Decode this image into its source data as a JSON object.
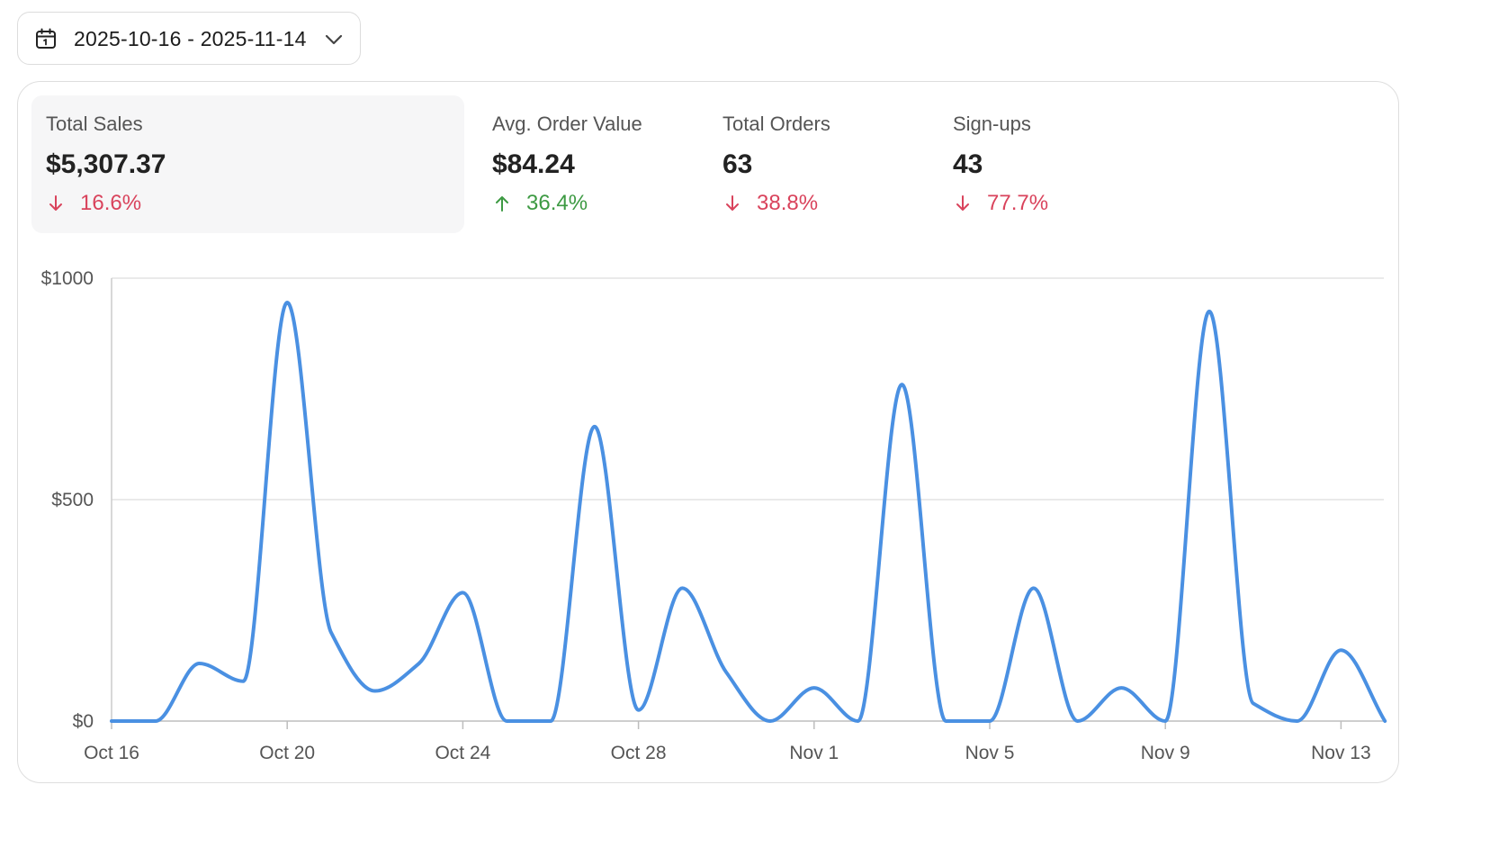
{
  "date_range": {
    "label": "2025-10-16 - 2025-11-14"
  },
  "kpis": [
    {
      "label": "Total Sales",
      "value": "$5,307.37",
      "delta": "16.6%",
      "direction": "down"
    },
    {
      "label": "Avg. Order Value",
      "value": "$84.24",
      "delta": "36.4%",
      "direction": "up"
    },
    {
      "label": "Total Orders",
      "value": "63",
      "delta": "38.8%",
      "direction": "down"
    },
    {
      "label": "Sign-ups",
      "value": "43",
      "delta": "77.7%",
      "direction": "down"
    }
  ],
  "colors": {
    "line": "#4a90e2",
    "down": "#d9435c",
    "up": "#3d9a43",
    "grid": "#e3e3e3"
  },
  "icons": {
    "date": "calendar-icon",
    "dropdown": "chevron-down-icon"
  },
  "chart_data": {
    "type": "line",
    "title": "",
    "xlabel": "",
    "ylabel": "",
    "y_tick_labels": [
      "$0",
      "$500",
      "$1000"
    ],
    "y_ticks": [
      0,
      500,
      1000
    ],
    "ylim": [
      0,
      1000
    ],
    "x_tick_labels": [
      "Oct 16",
      "Oct 20",
      "Oct 24",
      "Oct 28",
      "Nov 1",
      "Nov 5",
      "Nov 9",
      "Nov 13"
    ],
    "grid": true,
    "series": [
      {
        "x": [
          "Oct 16",
          "Oct 17",
          "Oct 18",
          "Oct 19",
          "Oct 20",
          "Oct 21",
          "Oct 22",
          "Oct 23",
          "Oct 24",
          "Oct 25",
          "Oct 26",
          "Oct 27",
          "Oct 28",
          "Oct 29",
          "Oct 30",
          "Oct 31",
          "Nov 1",
          "Nov 2",
          "Nov 3",
          "Nov 4",
          "Nov 5",
          "Nov 6",
          "Nov 7",
          "Nov 8",
          "Nov 9",
          "Nov 10",
          "Nov 11",
          "Nov 12",
          "Nov 13",
          "Nov 14"
        ],
        "values": [
          0,
          0,
          130,
          90,
          945,
          200,
          68,
          130,
          290,
          0,
          0,
          665,
          25,
          300,
          110,
          0,
          75,
          0,
          760,
          0,
          0,
          300,
          0,
          75,
          0,
          925,
          40,
          0,
          160,
          0
        ]
      }
    ]
  }
}
